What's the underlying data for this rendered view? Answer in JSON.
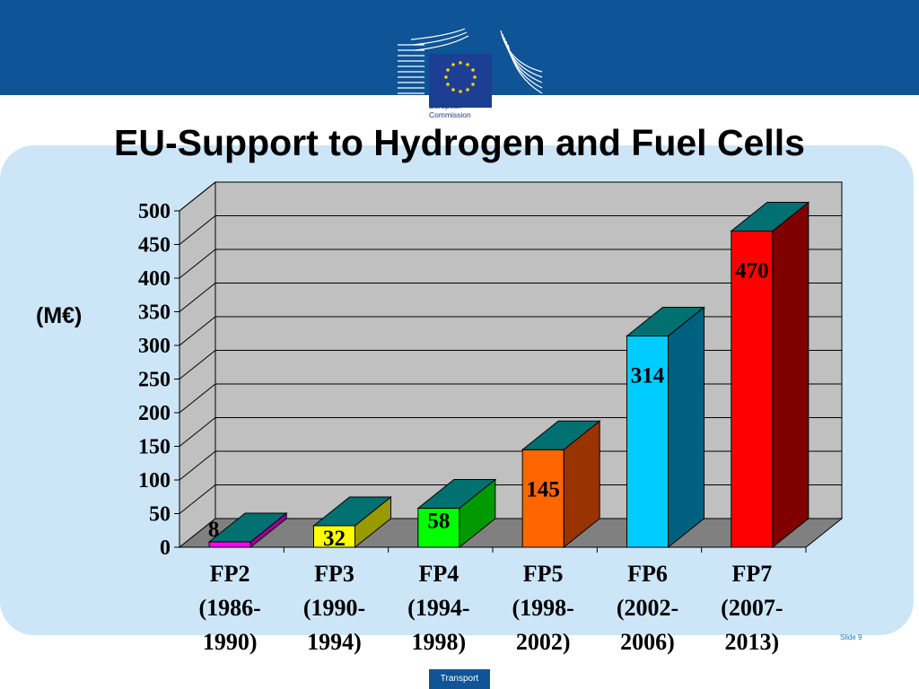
{
  "header": {
    "logo_line1": "European",
    "logo_line2": "Commission"
  },
  "slide": {
    "title": "EU-Support to Hydrogen and Fuel Cells",
    "number": "Slide 9",
    "footer": "Transport"
  },
  "colors": {
    "band": "#0f5496",
    "panel": "#cce6f8"
  },
  "chart_data": {
    "type": "bar",
    "title": "",
    "ylabel": "(M€)",
    "xlabel": "",
    "ylim": [
      0,
      500
    ],
    "y_ticks": [
      0,
      50,
      100,
      150,
      200,
      250,
      300,
      350,
      400,
      450,
      500
    ],
    "grid": true,
    "three_d": true,
    "categories": [
      [
        "FP2",
        "(1986-",
        "1990)"
      ],
      [
        "FP3",
        "(1990-",
        "1994)"
      ],
      [
        "FP4",
        "(1994-",
        "1998)"
      ],
      [
        "FP5",
        "(1998-",
        "2002)"
      ],
      [
        "FP6",
        "(2002-",
        "2006)"
      ],
      [
        "FP7",
        "(2007-",
        "2013)"
      ]
    ],
    "values": [
      8,
      32,
      58,
      145,
      314,
      470
    ],
    "value_labels": [
      "8",
      "32",
      "58",
      "145",
      "314",
      "470"
    ],
    "bar_colors": [
      "#ff00ff",
      "#ffff00",
      "#00ff00",
      "#ff6600",
      "#00ccff",
      "#ff0000"
    ],
    "bar_side_colors": [
      "#990099",
      "#999900",
      "#009900",
      "#993300",
      "#006080",
      "#800000"
    ],
    "bar_top_color": "#007070"
  }
}
